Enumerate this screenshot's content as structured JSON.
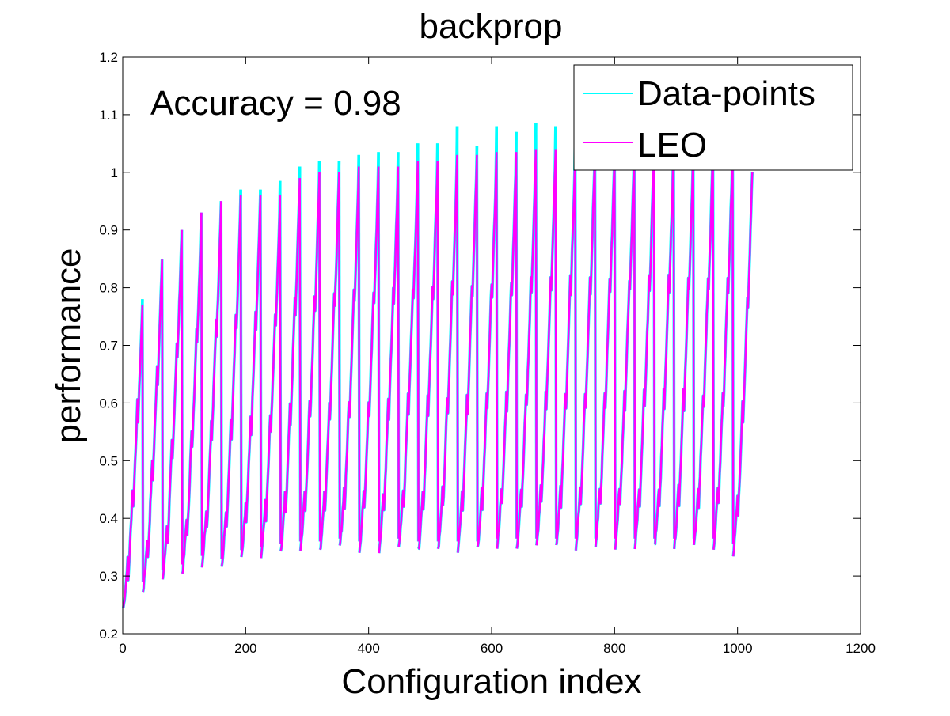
{
  "chart_data": {
    "type": "line",
    "title": "backprop",
    "xlabel": "Configuration index",
    "ylabel": "performance",
    "annotation": "Accuracy = 0.98",
    "xlim": [
      0,
      1200
    ],
    "ylim": [
      0.2,
      1.2
    ],
    "x_ticks": [
      "0",
      "200",
      "400",
      "600",
      "800",
      "1000",
      "1200"
    ],
    "y_ticks": [
      "0.2",
      "0.3",
      "0.4",
      "0.5",
      "0.6",
      "0.7",
      "0.8",
      "0.9",
      "1",
      "1.1",
      "1.2"
    ],
    "legend_position": "top-right",
    "grid": false,
    "x_range": [
      1,
      1024
    ],
    "cycle_length": 32,
    "segments": [
      {
        "start": 1,
        "min": 0.26,
        "max": 0.77,
        "data_peak": 0.78
      },
      {
        "start": 33,
        "min": 0.29,
        "max": 0.85,
        "data_peak": 0.85
      },
      {
        "start": 65,
        "min": 0.31,
        "max": 0.9,
        "data_peak": 0.9
      },
      {
        "start": 97,
        "min": 0.32,
        "max": 0.93,
        "data_peak": 0.93
      },
      {
        "start": 129,
        "min": 0.335,
        "max": 0.95,
        "data_peak": 0.95
      },
      {
        "start": 161,
        "min": 0.33,
        "max": 0.96,
        "data_peak": 0.97
      },
      {
        "start": 193,
        "min": 0.345,
        "max": 0.96,
        "data_peak": 0.97
      },
      {
        "start": 225,
        "min": 0.35,
        "max": 0.96,
        "data_peak": 0.985
      },
      {
        "start": 257,
        "min": 0.355,
        "max": 0.99,
        "data_peak": 1.01
      },
      {
        "start": 289,
        "min": 0.36,
        "max": 1.0,
        "data_peak": 1.02
      },
      {
        "start": 321,
        "min": 0.36,
        "max": 1.0,
        "data_peak": 1.02
      },
      {
        "start": 353,
        "min": 0.365,
        "max": 1.01,
        "data_peak": 1.03
      },
      {
        "start": 385,
        "min": 0.36,
        "max": 1.01,
        "data_peak": 1.035
      },
      {
        "start": 417,
        "min": 0.36,
        "max": 1.01,
        "data_peak": 1.035
      },
      {
        "start": 449,
        "min": 0.365,
        "max": 1.02,
        "data_peak": 1.05
      },
      {
        "start": 481,
        "min": 0.36,
        "max": 1.02,
        "data_peak": 1.05
      },
      {
        "start": 513,
        "min": 0.36,
        "max": 1.03,
        "data_peak": 1.08
      },
      {
        "start": 545,
        "min": 0.36,
        "max": 1.03,
        "data_peak": 1.045
      },
      {
        "start": 577,
        "min": 0.36,
        "max": 1.035,
        "data_peak": 1.08
      },
      {
        "start": 609,
        "min": 0.365,
        "max": 1.035,
        "data_peak": 1.07
      },
      {
        "start": 641,
        "min": 0.365,
        "max": 1.04,
        "data_peak": 1.085
      },
      {
        "start": 673,
        "min": 0.365,
        "max": 1.04,
        "data_peak": 1.08
      },
      {
        "start": 705,
        "min": 0.365,
        "max": 1.04,
        "data_peak": 1.08
      },
      {
        "start": 737,
        "min": 0.365,
        "max": 1.04,
        "data_peak": 1.08
      },
      {
        "start": 769,
        "min": 0.365,
        "max": 1.04,
        "data_peak": 1.08
      },
      {
        "start": 801,
        "min": 0.365,
        "max": 1.04,
        "data_peak": 1.08
      },
      {
        "start": 833,
        "min": 0.365,
        "max": 1.04,
        "data_peak": 1.08
      },
      {
        "start": 865,
        "min": 0.365,
        "max": 1.04,
        "data_peak": 1.08
      },
      {
        "start": 897,
        "min": 0.365,
        "max": 1.04,
        "data_peak": 1.08
      },
      {
        "start": 929,
        "min": 0.365,
        "max": 1.04,
        "data_peak": 1.08
      },
      {
        "start": 961,
        "min": 0.365,
        "max": 1.04,
        "data_peak": 1.08
      },
      {
        "start": 993,
        "min": 0.355,
        "max": 1.0,
        "data_peak": 1.0
      }
    ],
    "series": [
      {
        "name": "Data-points",
        "color": "#00ffff"
      },
      {
        "name": "LEO",
        "color": "#ff00ff"
      }
    ]
  }
}
